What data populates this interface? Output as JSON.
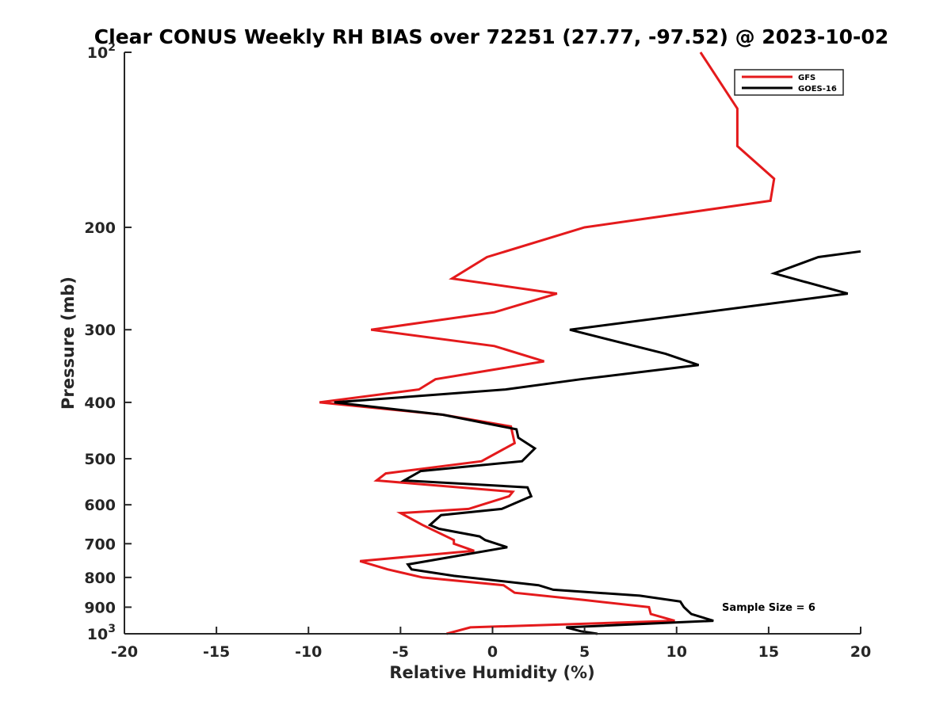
{
  "chart_data": {
    "type": "line",
    "title": "Clear CONUS Weekly RH BIAS over 72251 (27.77, -97.52) @ 2023-10-02",
    "xlabel": "Relative Humidity (%)",
    "ylabel": "Pressure (mb)",
    "xlim": [
      -20,
      20
    ],
    "ylim": [
      100,
      1000
    ],
    "y_scale": "log",
    "y_reversed": true,
    "x_ticks": [
      "-20",
      "-15",
      "-10",
      "-5",
      "0",
      "5",
      "10",
      "15",
      "20"
    ],
    "y_ticks": [
      {
        "value": 100,
        "base": "10",
        "exp": "2"
      },
      {
        "value": 200,
        "label": "200"
      },
      {
        "value": 300,
        "label": "300"
      },
      {
        "value": 400,
        "label": "400"
      },
      {
        "value": 500,
        "label": "500"
      },
      {
        "value": 600,
        "label": "600"
      },
      {
        "value": 700,
        "label": "700"
      },
      {
        "value": 800,
        "label": "800"
      },
      {
        "value": 900,
        "label": "900"
      },
      {
        "value": 1000,
        "base": "10",
        "exp": "3"
      }
    ],
    "legend_position": "top-right",
    "annotation": "Sample Size = 6",
    "series": [
      {
        "name": "GFS",
        "color": "#e41a1c",
        "points": [
          [
            -2.5,
            1000
          ],
          [
            -1.2,
            975
          ],
          [
            9.9,
            950
          ],
          [
            8.6,
            925
          ],
          [
            8.5,
            900
          ],
          [
            5,
            875
          ],
          [
            1.2,
            850
          ],
          [
            0.6,
            825
          ],
          [
            -3.8,
            800
          ],
          [
            -5.7,
            775
          ],
          [
            -7.2,
            750
          ],
          [
            -2.1,
            725
          ],
          [
            -1,
            720
          ],
          [
            -2.1,
            700
          ],
          [
            -2.1,
            690
          ],
          [
            -3.8,
            650
          ],
          [
            -5,
            620
          ],
          [
            -1.3,
            610
          ],
          [
            0.9,
            580
          ],
          [
            1.1,
            570
          ],
          [
            -6.3,
            545
          ],
          [
            -5.8,
            530
          ],
          [
            -0.6,
            505
          ],
          [
            1.2,
            470
          ],
          [
            1,
            440
          ],
          [
            -2.7,
            420
          ],
          [
            -9.4,
            400
          ],
          [
            -4,
            380
          ],
          [
            -3.1,
            365
          ],
          [
            2.8,
            340
          ],
          [
            0.1,
            320
          ],
          [
            -6.6,
            300
          ],
          [
            0.1,
            280
          ],
          [
            3.5,
            260
          ],
          [
            -2.2,
            245
          ],
          [
            -0.3,
            225
          ],
          [
            5,
            200
          ],
          [
            15.1,
            180
          ],
          [
            15.3,
            165
          ],
          [
            13.3,
            145
          ],
          [
            13.3,
            125
          ],
          [
            11.3,
            100
          ]
        ]
      },
      {
        "name": "GOES-16",
        "color": "#000000",
        "points": [
          [
            5.7,
            1000
          ],
          [
            4.8,
            990
          ],
          [
            4,
            975
          ],
          [
            12,
            950
          ],
          [
            10.8,
            925
          ],
          [
            10.4,
            900
          ],
          [
            10.2,
            880
          ],
          [
            8,
            860
          ],
          [
            3.3,
            840
          ],
          [
            2.5,
            825
          ],
          [
            -2.1,
            795
          ],
          [
            -4.4,
            775
          ],
          [
            -4.6,
            760
          ],
          [
            0.8,
            710
          ],
          [
            -0.4,
            690
          ],
          [
            -0.7,
            680
          ],
          [
            -2.9,
            660
          ],
          [
            -3.4,
            650
          ],
          [
            -2.8,
            625
          ],
          [
            0.5,
            610
          ],
          [
            2.1,
            580
          ],
          [
            1.9,
            560
          ],
          [
            -4.8,
            545
          ],
          [
            -3.9,
            525
          ],
          [
            1.6,
            505
          ],
          [
            2.3,
            480
          ],
          [
            1.4,
            460
          ],
          [
            1.3,
            445
          ],
          [
            -2.7,
            420
          ],
          [
            -8.6,
            400
          ],
          [
            0.7,
            380
          ],
          [
            4.8,
            365
          ],
          [
            11.2,
            345
          ],
          [
            9.4,
            330
          ],
          [
            4.2,
            300
          ],
          [
            19.3,
            260
          ],
          [
            15.3,
            240
          ],
          [
            17.7,
            225
          ],
          [
            20,
            220
          ]
        ]
      }
    ]
  }
}
